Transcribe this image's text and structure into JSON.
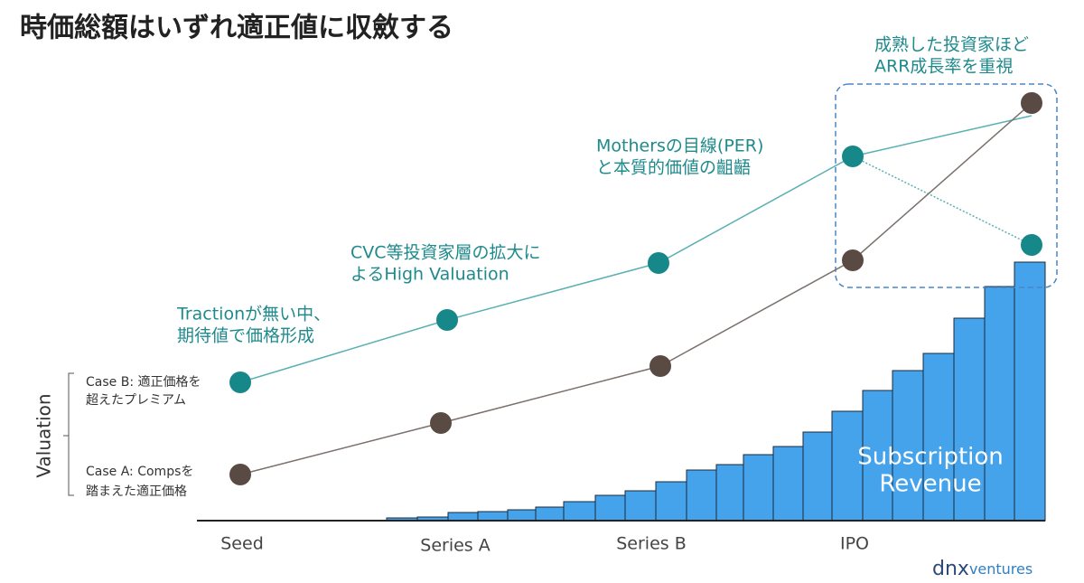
{
  "title": "時価総額はいずれ適正値に収斂する",
  "y_axis_label": "Valuation",
  "case_b": [
    "Case B: 適正価格を",
    "超えたプレミアム"
  ],
  "case_a": [
    "Case A: Compsを",
    "踏まえた適正価格"
  ],
  "annotations": [
    [
      "Tractionが無い中、",
      "期待値で価格形成"
    ],
    [
      "CVC等投資家層の拡大に",
      "よるHigh Valuation"
    ],
    [
      "Mothersの目線(PER)",
      "と本質的価値の齟齬"
    ],
    [
      "成熟した投資家ほど",
      "ARR成長率を重視"
    ]
  ],
  "stages": [
    "Seed",
    "Series A",
    "Series B",
    "IPO"
  ],
  "bars_label": [
    "Subscription",
    "Revenue"
  ],
  "logo": {
    "main": "dnx",
    "sub": "ventures"
  }
}
